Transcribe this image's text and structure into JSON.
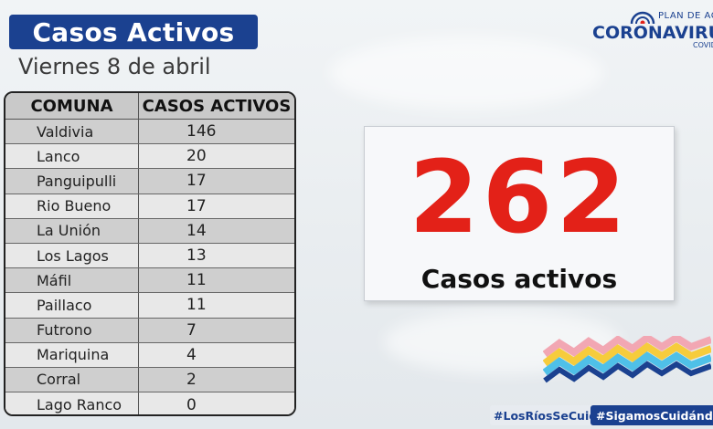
{
  "header": {
    "title": "Casos Activos",
    "date": "Viernes 8 de abril"
  },
  "logo": {
    "top_text": "PLAN DE ACCI",
    "main_text": "CORONAVIRU",
    "bottom_text": "COVID"
  },
  "table": {
    "col_comuna": "COMUNA",
    "col_casos": "CASOS ACTIVOS",
    "rows": [
      {
        "comuna": "Valdivia",
        "casos": "146"
      },
      {
        "comuna": "Lanco",
        "casos": "20"
      },
      {
        "comuna": "Panguipulli",
        "casos": "17"
      },
      {
        "comuna": "Rio Bueno",
        "casos": "17"
      },
      {
        "comuna": "La Unión",
        "casos": "14"
      },
      {
        "comuna": "Los Lagos",
        "casos": "13"
      },
      {
        "comuna": "Máfil",
        "casos": "11"
      },
      {
        "comuna": "Paillaco",
        "casos": "11"
      },
      {
        "comuna": "Futrono",
        "casos": "7"
      },
      {
        "comuna": "Mariquina",
        "casos": "4"
      },
      {
        "comuna": "Corral",
        "casos": "2"
      },
      {
        "comuna": "Lago Ranco",
        "casos": "0"
      }
    ]
  },
  "total": {
    "value": "262",
    "label": "Casos activos"
  },
  "hashtags": {
    "tag1": "#LosRíosSeCuida",
    "tag2": "#SigamosCuidándonos"
  },
  "colors": {
    "brand_blue": "#1b4190",
    "accent_red": "#e32118",
    "wave_pink": "#f2a7b3",
    "wave_yellow": "#f6cc3c",
    "wave_cyan": "#4fc0e8"
  },
  "icons": {
    "logo": "plan-de-accion-sun-icon",
    "decoration": "wave-stripes-icon"
  }
}
